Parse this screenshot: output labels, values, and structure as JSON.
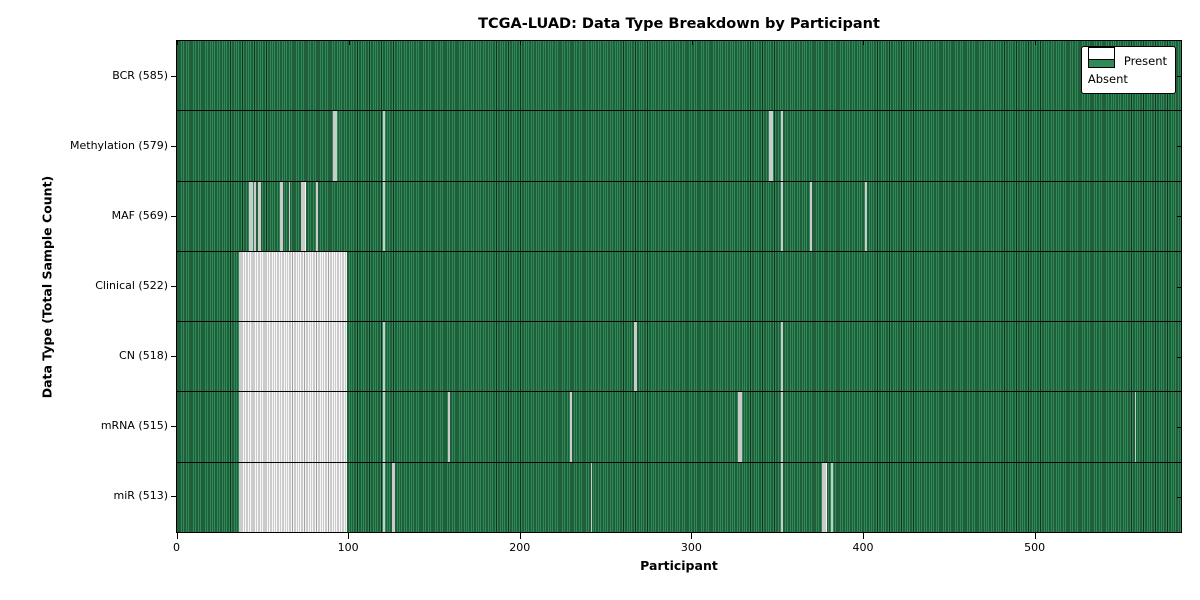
{
  "chart_data": {
    "type": "heatmap",
    "title": "TCGA-LUAD: Data Type Breakdown by Participant",
    "xlabel": "Participant",
    "ylabel": "Data Type (Total Sample Count)",
    "x_ticks": [
      "0",
      "100",
      "200",
      "300",
      "400",
      "500"
    ],
    "x_tick_values": [
      0,
      100,
      200,
      300,
      400,
      500
    ],
    "x_range": [
      0,
      585
    ],
    "n_participants": 585,
    "grid": false,
    "legend_position": "upper right",
    "colors": {
      "present": "#2e8b57",
      "absent": "#ffffff",
      "bar_edge": "#14311f",
      "absent_edge": "#9f9f9f"
    },
    "legend": [
      {
        "label": "Present",
        "key": "present"
      },
      {
        "label": "Absent",
        "key": "absent"
      }
    ],
    "rows": [
      {
        "label": "BCR (585)",
        "data_type": "BCR",
        "total": 585,
        "absent_ranges": []
      },
      {
        "label": "Methylation (579)",
        "data_type": "Methylation",
        "total": 579,
        "absent_ranges": [
          [
            91,
            92
          ],
          [
            120,
            120
          ],
          [
            345,
            346
          ],
          [
            352,
            352
          ]
        ]
      },
      {
        "label": "MAF (569)",
        "data_type": "MAF",
        "total": 569,
        "absent_ranges": [
          [
            42,
            43
          ],
          [
            45,
            45
          ],
          [
            47,
            48
          ],
          [
            60,
            61
          ],
          [
            65,
            65
          ],
          [
            72,
            74
          ],
          [
            81,
            81
          ],
          [
            120,
            120
          ],
          [
            352,
            352
          ],
          [
            369,
            369
          ],
          [
            401,
            401
          ]
        ]
      },
      {
        "label": "Clinical (522)",
        "data_type": "Clinical",
        "total": 522,
        "absent_ranges": [
          [
            36,
            98
          ]
        ]
      },
      {
        "label": "CN (518)",
        "data_type": "CN",
        "total": 518,
        "absent_ranges": [
          [
            36,
            98
          ],
          [
            120,
            120
          ],
          [
            266,
            267
          ],
          [
            352,
            352
          ]
        ]
      },
      {
        "label": "mRNA (515)",
        "data_type": "mRNA",
        "total": 515,
        "absent_ranges": [
          [
            36,
            98
          ],
          [
            120,
            120
          ],
          [
            158,
            158
          ],
          [
            229,
            229
          ],
          [
            327,
            328
          ],
          [
            352,
            352
          ],
          [
            558,
            558
          ]
        ]
      },
      {
        "label": "miR (513)",
        "data_type": "miR",
        "total": 513,
        "absent_ranges": [
          [
            36,
            98
          ],
          [
            120,
            120
          ],
          [
            125,
            126
          ],
          [
            241,
            241
          ],
          [
            352,
            352
          ],
          [
            376,
            378
          ],
          [
            381,
            381
          ]
        ]
      }
    ]
  }
}
